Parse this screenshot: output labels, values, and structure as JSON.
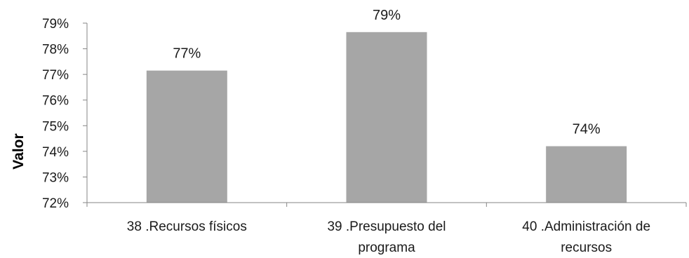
{
  "chart_data": {
    "type": "bar",
    "title": "",
    "xlabel": "",
    "ylabel": "Valor",
    "categories": [
      [
        "38 .Recursos físicos"
      ],
      [
        "39 .Presupuesto del",
        "programa"
      ],
      [
        "40 .Administración de",
        "recursos"
      ]
    ],
    "values": [
      77.15,
      78.65,
      74.2
    ],
    "data_labels": [
      "77%",
      "79%",
      "74%"
    ],
    "ylim": [
      72,
      79
    ],
    "yticks": [
      72,
      73,
      74,
      75,
      76,
      77,
      78,
      79
    ],
    "ytick_labels": [
      "72%",
      "73%",
      "74%",
      "75%",
      "76%",
      "77%",
      "78%",
      "79%"
    ],
    "bar_color": "#a6a6a6",
    "axis_color": "#868686",
    "grid": false,
    "legend": "none"
  }
}
